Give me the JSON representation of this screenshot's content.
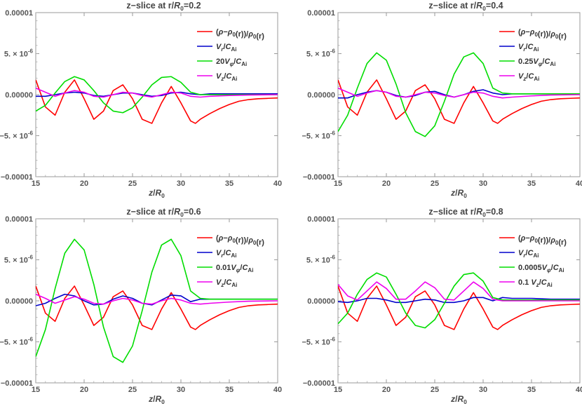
{
  "chart_data": [
    {
      "type": "line",
      "title": "z−slice at r/R0=0.2",
      "xlabel": "z/R0",
      "xlim": [
        15,
        40
      ],
      "ylim": [
        -1e-05,
        1e-05
      ],
      "xticks": [
        "15",
        "20",
        "25",
        "30",
        "35",
        "40"
      ],
      "yticks": [
        "0.00001",
        "5.×10⁻⁶",
        "0.00000",
        "−5.×10⁻⁶",
        "−0.00001"
      ],
      "series": [
        {
          "name": "(ρ−ρ0(r))/ρ0(r)",
          "color": "#ff0000",
          "x": [
            15,
            16,
            17,
            18,
            19,
            20,
            21,
            22,
            23,
            24,
            25,
            26,
            27,
            28,
            29,
            30,
            31,
            31.5,
            32,
            33,
            34,
            35,
            36,
            37,
            38,
            39,
            40
          ],
          "y": [
            1.8e-06,
            -1.5e-06,
            -2.5e-06,
            3e-07,
            1.8e-06,
            -5e-07,
            -3e-06,
            -2e-06,
            5e-07,
            1.2e-06,
            -5e-07,
            -3e-06,
            -3.5e-06,
            -1e-06,
            1e-06,
            -1e-06,
            -3.2e-06,
            -3.5e-06,
            -3e-06,
            -2.3e-06,
            -1.7e-06,
            -1.2e-06,
            -8e-07,
            -6e-07,
            -5e-07,
            -4.5e-07,
            -4e-07
          ]
        },
        {
          "name": "Vr/CAi",
          "color": "#0000cc",
          "x": [
            15,
            16,
            17,
            18,
            19,
            20,
            21,
            22,
            23,
            24,
            25,
            26,
            27,
            28,
            29,
            30,
            31,
            32,
            33,
            35,
            37,
            40
          ],
          "y": [
            -2e-07,
            -2e-07,
            0.0,
            2e-07,
            3e-07,
            2e-07,
            -1e-07,
            -2e-07,
            0.0,
            2e-07,
            2e-07,
            0.0,
            -2e-07,
            -1e-07,
            2e-07,
            3e-07,
            1e-07,
            0.0,
            1e-07,
            1e-07,
            1e-07,
            1e-07
          ]
        },
        {
          "name": "20Vφ/CAi",
          "color": "#00dd00",
          "x": [
            15,
            16,
            17,
            18,
            19,
            20,
            21,
            22,
            23,
            24,
            25,
            26,
            27,
            28,
            29,
            30,
            31,
            32,
            33,
            35,
            40
          ],
          "y": [
            -2e-06,
            -1.3e-06,
            2e-07,
            1.6e-06,
            2.2e-06,
            1.8e-06,
            5e-07,
            -1e-06,
            -2e-06,
            -2.2e-06,
            -1.6e-06,
            -3e-07,
            1.2e-06,
            2.1e-06,
            2.2e-06,
            1.5e-06,
            3e-07,
            0.0,
            0.0,
            0.0,
            0.0
          ]
        },
        {
          "name": "Vz/CAi",
          "color": "#ee00ee",
          "x": [
            15,
            16,
            17,
            18,
            19,
            20,
            21,
            22,
            23,
            24,
            25,
            26,
            27,
            28,
            29,
            30,
            31,
            32,
            33,
            35,
            37,
            40
          ],
          "y": [
            8e-07,
            3e-07,
            -2e-07,
            2e-07,
            5e-07,
            3e-07,
            -2e-07,
            -3e-07,
            0.0,
            3e-07,
            2e-07,
            -1e-07,
            -3e-07,
            0.0,
            3e-07,
            2e-07,
            -2e-07,
            -3e-07,
            -2e-07,
            -1e-07,
            -5e-08,
            0.0
          ]
        }
      ]
    },
    {
      "type": "line",
      "title": "z−slice at r/R0=0.4",
      "xlabel": "z/R0",
      "xlim": [
        15,
        40
      ],
      "ylim": [
        -1e-05,
        1e-05
      ],
      "xticks": [
        "15",
        "20",
        "25",
        "30",
        "35",
        "40"
      ],
      "yticks": [
        "0.00001",
        "5.×10⁻⁶",
        "0.00000",
        "−5.×10⁻⁶",
        "−0.00001"
      ],
      "series": [
        {
          "name": "(ρ−ρ0(r))/ρ0(r)",
          "color": "#ff0000",
          "x": [
            15,
            16,
            17,
            18,
            19,
            20,
            21,
            22,
            23,
            24,
            25,
            26,
            27,
            28,
            29,
            30,
            31,
            31.5,
            32,
            33,
            34,
            35,
            36,
            37,
            38,
            39,
            40
          ],
          "y": [
            1.8e-06,
            -1.5e-06,
            -2.5e-06,
            3e-07,
            1.8e-06,
            -5e-07,
            -3e-06,
            -2e-06,
            5e-07,
            1.2e-06,
            -5e-07,
            -3e-06,
            -3.5e-06,
            -1e-06,
            1e-06,
            -1e-06,
            -3.2e-06,
            -3.5e-06,
            -3e-06,
            -2.3e-06,
            -1.7e-06,
            -1.2e-06,
            -8e-07,
            -6e-07,
            -5e-07,
            -4.5e-07,
            -4e-07
          ]
        },
        {
          "name": "Vr/CAi",
          "color": "#0000cc",
          "x": [
            15,
            16,
            17,
            18,
            19,
            20,
            21,
            22,
            23,
            24,
            25,
            26,
            27,
            28,
            29,
            30,
            31,
            32,
            33,
            35,
            37,
            40
          ],
          "y": [
            -4e-07,
            -4e-07,
            0.0,
            3e-07,
            5e-07,
            3e-07,
            -1e-07,
            -3e-07,
            -1e-07,
            3e-07,
            4e-07,
            0.0,
            -3e-07,
            0.0,
            4e-07,
            6e-07,
            2e-07,
            0.0,
            1e-07,
            1e-07,
            1e-07,
            1e-07
          ]
        },
        {
          "name": "0.25Vφ/CAi",
          "color": "#00dd00",
          "x": [
            15,
            16,
            17,
            18,
            19,
            20,
            21,
            22,
            23,
            24,
            25,
            26,
            27,
            28,
            29,
            30,
            31,
            32,
            33,
            35,
            40
          ],
          "y": [
            -4.5e-06,
            -2.5e-06,
            8e-07,
            3.8e-06,
            5.1e-06,
            4.2e-06,
            1.3e-06,
            -2.2e-06,
            -4.5e-06,
            -5.1e-06,
            -3.8e-06,
            -8e-07,
            2.5e-06,
            4.6e-06,
            5.1e-06,
            3.8e-06,
            8e-07,
            2e-07,
            1e-07,
            1e-07,
            1e-07
          ]
        },
        {
          "name": "Vz/CAi",
          "color": "#ee00ee",
          "x": [
            15,
            16,
            17,
            18,
            19,
            20,
            21,
            22,
            23,
            24,
            25,
            26,
            27,
            28,
            29,
            30,
            31,
            32,
            33,
            35,
            37,
            40
          ],
          "y": [
            8e-07,
            3e-07,
            -2e-07,
            2e-07,
            5e-07,
            3e-07,
            -2e-07,
            -3e-07,
            0.0,
            3e-07,
            2e-07,
            -1e-07,
            -3e-07,
            0.0,
            3e-07,
            2e-07,
            -2e-07,
            -4e-07,
            -3e-07,
            -1.5e-07,
            -5e-08,
            0.0
          ]
        }
      ]
    },
    {
      "type": "line",
      "title": "z−slice at r/R0=0.6",
      "xlabel": "z/R0",
      "xlim": [
        15,
        40
      ],
      "ylim": [
        -1e-05,
        1e-05
      ],
      "xticks": [
        "15",
        "20",
        "25",
        "30",
        "35",
        "40"
      ],
      "yticks": [
        "0.00001",
        "5.×10⁻⁶",
        "0.00000",
        "−5.×10⁻⁶",
        "−0.00001"
      ],
      "series": [
        {
          "name": "(ρ−ρ0(r))/ρ0(r)",
          "color": "#ff0000",
          "x": [
            15,
            16,
            17,
            18,
            19,
            20,
            21,
            22,
            23,
            24,
            25,
            26,
            27,
            28,
            29,
            30,
            31,
            31.5,
            32,
            33,
            34,
            35,
            36,
            37,
            38,
            39,
            40
          ],
          "y": [
            1.8e-06,
            -1.5e-06,
            -2.5e-06,
            3e-07,
            1.8e-06,
            -5e-07,
            -3e-06,
            -2e-06,
            5e-07,
            1.2e-06,
            -5e-07,
            -3e-06,
            -3.5e-06,
            -1e-06,
            1e-06,
            -1e-06,
            -3.2e-06,
            -3.5e-06,
            -3e-06,
            -2.3e-06,
            -1.7e-06,
            -1.2e-06,
            -8e-07,
            -6e-07,
            -5e-07,
            -4.5e-07,
            -4e-07
          ]
        },
        {
          "name": "Vr/CAi",
          "color": "#0000cc",
          "x": [
            15,
            16,
            17,
            18,
            19,
            20,
            21,
            22,
            23,
            24,
            25,
            26,
            27,
            28,
            29,
            30,
            31,
            32,
            33,
            35,
            37,
            40
          ],
          "y": [
            -6e-07,
            -3e-07,
            3e-07,
            8e-07,
            6e-07,
            0.0,
            -5e-07,
            -4e-07,
            2e-07,
            6e-07,
            3e-07,
            -3e-07,
            -5e-07,
            1e-07,
            7e-07,
            6e-07,
            -1e-07,
            2e-07,
            2e-07,
            2e-07,
            2e-07,
            2e-07
          ]
        },
        {
          "name": "0.01Vφ/CAi",
          "color": "#00dd00",
          "x": [
            15,
            16,
            17,
            18,
            19,
            20,
            21,
            22,
            23,
            24,
            25,
            26,
            27,
            28,
            29,
            30,
            31,
            32,
            33,
            35,
            40
          ],
          "y": [
            -6.8e-06,
            -3.5e-06,
            1.5e-06,
            5.8e-06,
            7.5e-06,
            6.2e-06,
            2e-06,
            -3.2e-06,
            -6.8e-06,
            -7.5e-06,
            -5.5e-06,
            -1.2e-06,
            3.5e-06,
            6.8e-06,
            7.5e-06,
            5.5e-06,
            1.2e-06,
            3e-07,
            2e-07,
            2e-07,
            2e-07
          ]
        },
        {
          "name": "Vz/CAi",
          "color": "#ee00ee",
          "x": [
            15,
            16,
            17,
            18,
            19,
            20,
            21,
            22,
            23,
            24,
            25,
            26,
            27,
            28,
            29,
            30,
            31,
            32,
            33,
            35,
            37,
            40
          ],
          "y": [
            8e-07,
            3e-07,
            -3e-07,
            1e-07,
            5e-07,
            2e-07,
            -3e-07,
            -4e-07,
            0.0,
            3e-07,
            1e-07,
            -3e-07,
            -4e-07,
            0.0,
            3e-07,
            1e-07,
            -3e-07,
            -4e-07,
            -3e-07,
            -1.5e-07,
            -5e-08,
            0.0
          ]
        }
      ]
    },
    {
      "type": "line",
      "title": "z−slice at r/R0=0.8",
      "xlabel": "z/R0",
      "xlim": [
        15,
        40
      ],
      "ylim": [
        -1e-05,
        1e-05
      ],
      "xticks": [
        "15",
        "20",
        "25",
        "30",
        "35",
        "40"
      ],
      "yticks": [
        "0.00001",
        "5.×10⁻⁶",
        "0.00000",
        "−5.×10⁻⁶",
        "−0.00001"
      ],
      "series": [
        {
          "name": "(ρ−ρ0(r))/ρ0(r)",
          "color": "#ff0000",
          "x": [
            15,
            16,
            17,
            18,
            19,
            20,
            21,
            22,
            23,
            24,
            25,
            26,
            27,
            28,
            29,
            30,
            31,
            31.5,
            32,
            33,
            34,
            35,
            36,
            37,
            38,
            39,
            40
          ],
          "y": [
            1.8e-06,
            -1.5e-06,
            -2.5e-06,
            3e-07,
            1.8e-06,
            -5e-07,
            -3e-06,
            -2e-06,
            5e-07,
            1.2e-06,
            -5e-07,
            -3e-06,
            -3.5e-06,
            -1e-06,
            1e-06,
            -1e-06,
            -3.2e-06,
            -3.5e-06,
            -3e-06,
            -2.3e-06,
            -1.7e-06,
            -1.2e-06,
            -8e-07,
            -6e-07,
            -5e-07,
            -4.5e-07,
            -4e-07
          ]
        },
        {
          "name": "Vr/CAi",
          "color": "#0000cc",
          "x": [
            15,
            16,
            17,
            18,
            19,
            20,
            21,
            22,
            23,
            24,
            25,
            26,
            27,
            28,
            29,
            30,
            31,
            32,
            33,
            35,
            37,
            40
          ],
          "y": [
            -1e-07,
            -2e-07,
            0.0,
            3e-07,
            3e-07,
            1e-07,
            -2e-07,
            -2e-07,
            0.0,
            2e-07,
            1e-07,
            -2e-07,
            -2e-07,
            0.0,
            4e-07,
            4e-07,
            0.0,
            4e-07,
            3e-07,
            3e-07,
            2e-07,
            2e-07
          ]
        },
        {
          "name": "0.0005Vφ/CAi",
          "color": "#00dd00",
          "x": [
            15,
            16,
            17,
            18,
            19,
            20,
            21,
            22,
            23,
            24,
            25,
            26,
            27,
            28,
            29,
            30,
            31,
            32,
            33,
            35,
            40
          ],
          "y": [
            -2.8e-06,
            -1.5e-06,
            8e-07,
            2.6e-06,
            3.4e-06,
            2.9e-06,
            8e-07,
            -1.5e-06,
            -3e-06,
            -3.3e-06,
            -2.3e-06,
            -3e-07,
            1.8e-06,
            3.2e-06,
            3.4e-06,
            2.4e-06,
            4e-07,
            1e-07,
            1e-07,
            1e-07,
            1e-07
          ]
        },
        {
          "name": "0.1 Vz/CAi",
          "color": "#ee00ee",
          "x": [
            15,
            16,
            17,
            18,
            19,
            20,
            21,
            22,
            23,
            24,
            25,
            26,
            27,
            28,
            29,
            30,
            31,
            32,
            33,
            35,
            37,
            40
          ],
          "y": [
            2e-06,
            6e-07,
            1e-07,
            1.2e-06,
            2.3e-06,
            1.5e-06,
            2e-07,
            2e-07,
            1.2e-06,
            2.3e-06,
            1.6e-06,
            2e-07,
            1e-07,
            1.2e-06,
            2.3e-06,
            1.5e-06,
            2e-07,
            0.0,
            0.0,
            0.0,
            0.0,
            0.0
          ]
        }
      ]
    }
  ]
}
